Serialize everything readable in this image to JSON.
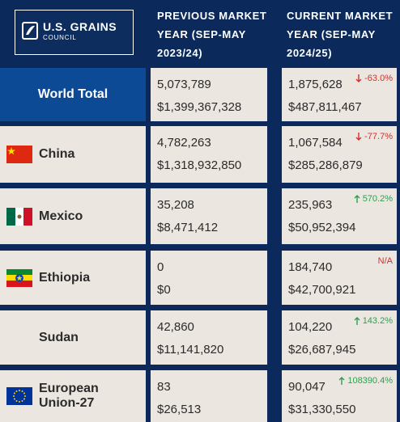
{
  "header": {
    "logo": {
      "line1": "U.S. GRAINS",
      "line2": "COUNCIL"
    },
    "columns": [
      [
        "PREVIOUS MARKET",
        "YEAR (SEP-MAY",
        "2023/24)"
      ],
      [
        "CURRENT MARKET",
        "YEAR (SEP-MAY",
        "2024/25)"
      ]
    ]
  },
  "table": {
    "rows": [
      {
        "country": "World Total",
        "previous": {
          "volume": "5,073,789",
          "value": "$1,399,367,328"
        },
        "current": {
          "volume": "1,875,628",
          "value": "$487,811,467",
          "change": "-63.0%"
        }
      },
      {
        "country": "China",
        "previous": {
          "volume": "4,782,263",
          "value": "$1,318,932,850"
        },
        "current": {
          "volume": "1,067,584",
          "value": "$285,286,879",
          "change": "-77.7%"
        }
      },
      {
        "country": "Mexico",
        "previous": {
          "volume": "35,208",
          "value": "$8,471,412"
        },
        "current": {
          "volume": "235,963",
          "value": "$50,952,394",
          "change": "570.2%"
        }
      },
      {
        "country": "Ethiopia",
        "previous": {
          "volume": "0",
          "value": "$0"
        },
        "current": {
          "volume": "184,740",
          "value": "$42,700,921",
          "change": "N/A"
        }
      },
      {
        "country": "Sudan",
        "previous": {
          "volume": "42,860",
          "value": "$11,141,820"
        },
        "current": {
          "volume": "104,220",
          "value": "$26,687,945",
          "change": "143.2%"
        }
      },
      {
        "country": "European Union-27",
        "previous": {
          "volume": "83",
          "value": "$26,513"
        },
        "current": {
          "volume": "90,047",
          "value": "$31,330,550",
          "change": "108390.4%"
        }
      }
    ]
  }
}
